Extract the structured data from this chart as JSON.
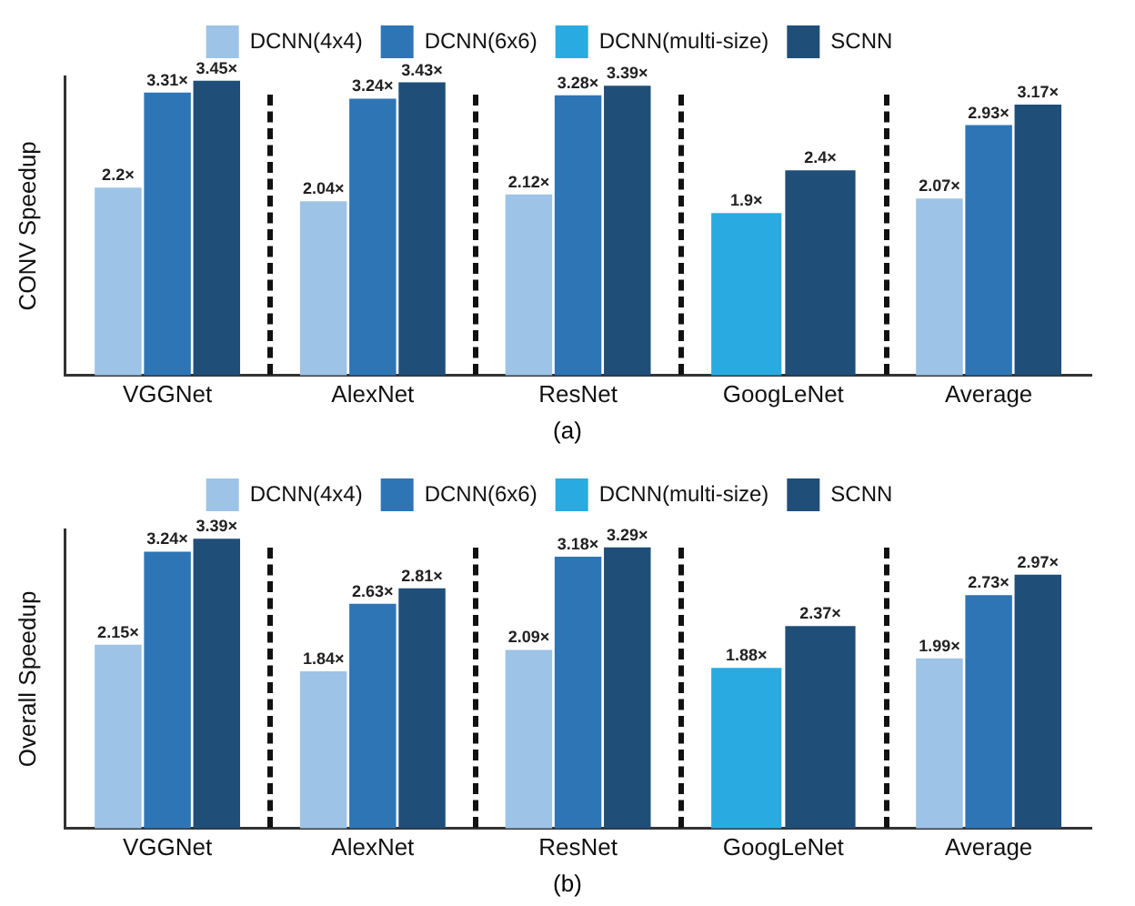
{
  "chart_data": [
    {
      "type": "bar",
      "ylabel": "CONV Speedup",
      "categories": [
        "VGGNet",
        "AlexNet",
        "ResNet",
        "GoogLeNet",
        "Average"
      ],
      "legend": "top",
      "grid": false,
      "annotations": [
        "(a)"
      ],
      "series": [
        {
          "name": "DCNN(4x4)",
          "color": "#9dc3e6",
          "values": [
            2.2,
            2.04,
            2.12,
            null,
            2.07
          ],
          "value_labels": [
            "2.2×",
            "2.04×",
            "2.12×",
            null,
            "2.07×"
          ]
        },
        {
          "name": "DCNN(6x6)",
          "color": "#2e75b6",
          "values": [
            3.31,
            3.24,
            3.28,
            null,
            2.93
          ],
          "value_labels": [
            "3.31×",
            "3.24×",
            "3.28×",
            null,
            "2.93×"
          ]
        },
        {
          "name": "DCNN(multi-size)",
          "color": "#29abe2",
          "values": [
            null,
            null,
            null,
            1.9,
            null
          ],
          "value_labels": [
            null,
            null,
            null,
            "1.9×",
            null
          ]
        },
        {
          "name": "SCNN",
          "color": "#1f4e79",
          "values": [
            3.45,
            3.43,
            3.39,
            2.4,
            3.17
          ],
          "value_labels": [
            "3.45×",
            "3.43×",
            "3.39×",
            "2.4×",
            "3.17×"
          ]
        }
      ]
    },
    {
      "type": "bar",
      "ylabel": "Overall Speedup",
      "categories": [
        "VGGNet",
        "AlexNet",
        "ResNet",
        "GoogLeNet",
        "Average"
      ],
      "legend": "top",
      "grid": false,
      "annotations": [
        "(b)"
      ],
      "series": [
        {
          "name": "DCNN(4x4)",
          "color": "#9dc3e6",
          "values": [
            2.15,
            1.84,
            2.09,
            null,
            1.99
          ],
          "value_labels": [
            "2.15×",
            "1.84×",
            "2.09×",
            null,
            "1.99×"
          ]
        },
        {
          "name": "DCNN(6x6)",
          "color": "#2e75b6",
          "values": [
            3.24,
            2.63,
            3.18,
            null,
            2.73
          ],
          "value_labels": [
            "3.24×",
            "2.63×",
            "3.18×",
            null,
            "2.73×"
          ]
        },
        {
          "name": "DCNN(multi-size)",
          "color": "#29abe2",
          "values": [
            null,
            null,
            null,
            1.88,
            null
          ],
          "value_labels": [
            null,
            null,
            null,
            "1.88×",
            null
          ]
        },
        {
          "name": "SCNN",
          "color": "#1f4e79",
          "values": [
            3.39,
            2.81,
            3.29,
            2.37,
            2.97
          ],
          "value_labels": [
            "3.39×",
            "2.81×",
            "3.29×",
            "2.37×",
            "2.97×"
          ]
        }
      ]
    }
  ]
}
